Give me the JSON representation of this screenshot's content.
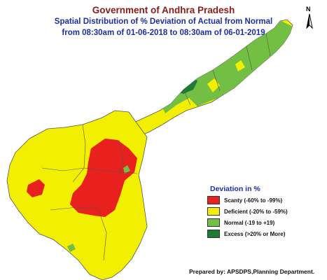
{
  "title": {
    "line1": "Government of Andhra Pradesh",
    "line2": "Spatial Distribution of % Deviation of Actual from Normal",
    "line3": "from 08:30am of 01-06-2018 to 08:30am of 06-01-2019"
  },
  "north_arrow": {
    "label": "N"
  },
  "legend": {
    "title": "Deviation in %",
    "items": [
      {
        "label": "Scanty (-60% to -99%)",
        "color": "#e8201e",
        "category": "scanty"
      },
      {
        "label": "Deficient (-20% to -59%)",
        "color": "#f2f000",
        "category": "deficient"
      },
      {
        "label": "Normal (-19 to +19)",
        "color": "#72bf44",
        "category": "normal"
      },
      {
        "label": "Excess (>20% or More)",
        "color": "#1e7b36",
        "category": "excess"
      }
    ]
  },
  "footer": {
    "text": "Prepared by: APSDPS,Planning Department."
  },
  "colors": {
    "title_red": "#8b1a1a",
    "title_blue": "#1b2fa0",
    "boundary": "#555555"
  }
}
